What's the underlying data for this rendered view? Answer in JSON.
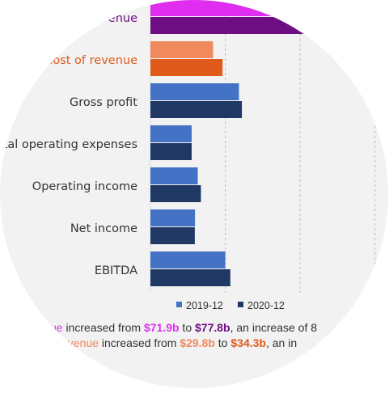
{
  "colors": {
    "background": "#ffffff",
    "panel": "#f2f2f2",
    "series_2019": "#4472c4",
    "series_2020": "#203864",
    "revenue_2019": "#e02ef0",
    "revenue_2020": "#6d0f83",
    "cost_2019": "#f08a5d",
    "cost_2020": "#e05a1c",
    "label_default": "#333333",
    "label_revenue": "#6d0f83",
    "label_cost": "#e05a1c",
    "highlight_revenue_2019": "#e02ef0",
    "highlight_revenue_2020": "#6d0f83",
    "highlight_cost": "#f08a5d",
    "gridline": "#bfbfbf"
  },
  "chart_data": {
    "type": "bar",
    "orientation": "horizontal",
    "categories": [
      "Revenue",
      "Cost of revenue",
      "Gross profit",
      "Total operating expenses",
      "Operating income",
      "Net income",
      "EBITDA"
    ],
    "display_labels": [
      "evenue",
      "Cost of revenue",
      "Gross profit",
      "otal operating expenses",
      "Operating income",
      "Net income",
      "EBITDA"
    ],
    "series": [
      {
        "name": "2019-12",
        "values": [
          71.9,
          29.8,
          42.1,
          19.6,
          22.5,
          21.2,
          35.6
        ]
      },
      {
        "name": "2020-12",
        "values": [
          77.8,
          34.3,
          43.5,
          19.6,
          24.0,
          21.1,
          38.0
        ]
      }
    ],
    "xlim": [
      0,
      100
    ],
    "grid": true,
    "legend_position": "bottom"
  },
  "legend": [
    {
      "label": "2019-12"
    },
    {
      "label": "2020-12"
    }
  ],
  "captions": [
    {
      "parts": [
        {
          "text": "ue",
          "style": "revenue_2019"
        },
        {
          "text": " increased from ",
          "style": "plain"
        },
        {
          "text": "$71.9b",
          "style": "revenue_2019_bold"
        },
        {
          "text": " to ",
          "style": "plain"
        },
        {
          "text": "$77.8b",
          "style": "revenue_2020_bold"
        },
        {
          "text": ", an increase of 8",
          "style": "plain"
        }
      ]
    },
    {
      "parts": [
        {
          "text": "evenue",
          "style": "cost"
        },
        {
          "text": " increased from ",
          "style": "plain"
        },
        {
          "text": "$29.8b",
          "style": "cost_bold"
        },
        {
          "text": " to ",
          "style": "plain"
        },
        {
          "text": "$34.3b",
          "style": "cost_dark_bold"
        },
        {
          "text": ", an in",
          "style": "plain"
        }
      ]
    }
  ]
}
